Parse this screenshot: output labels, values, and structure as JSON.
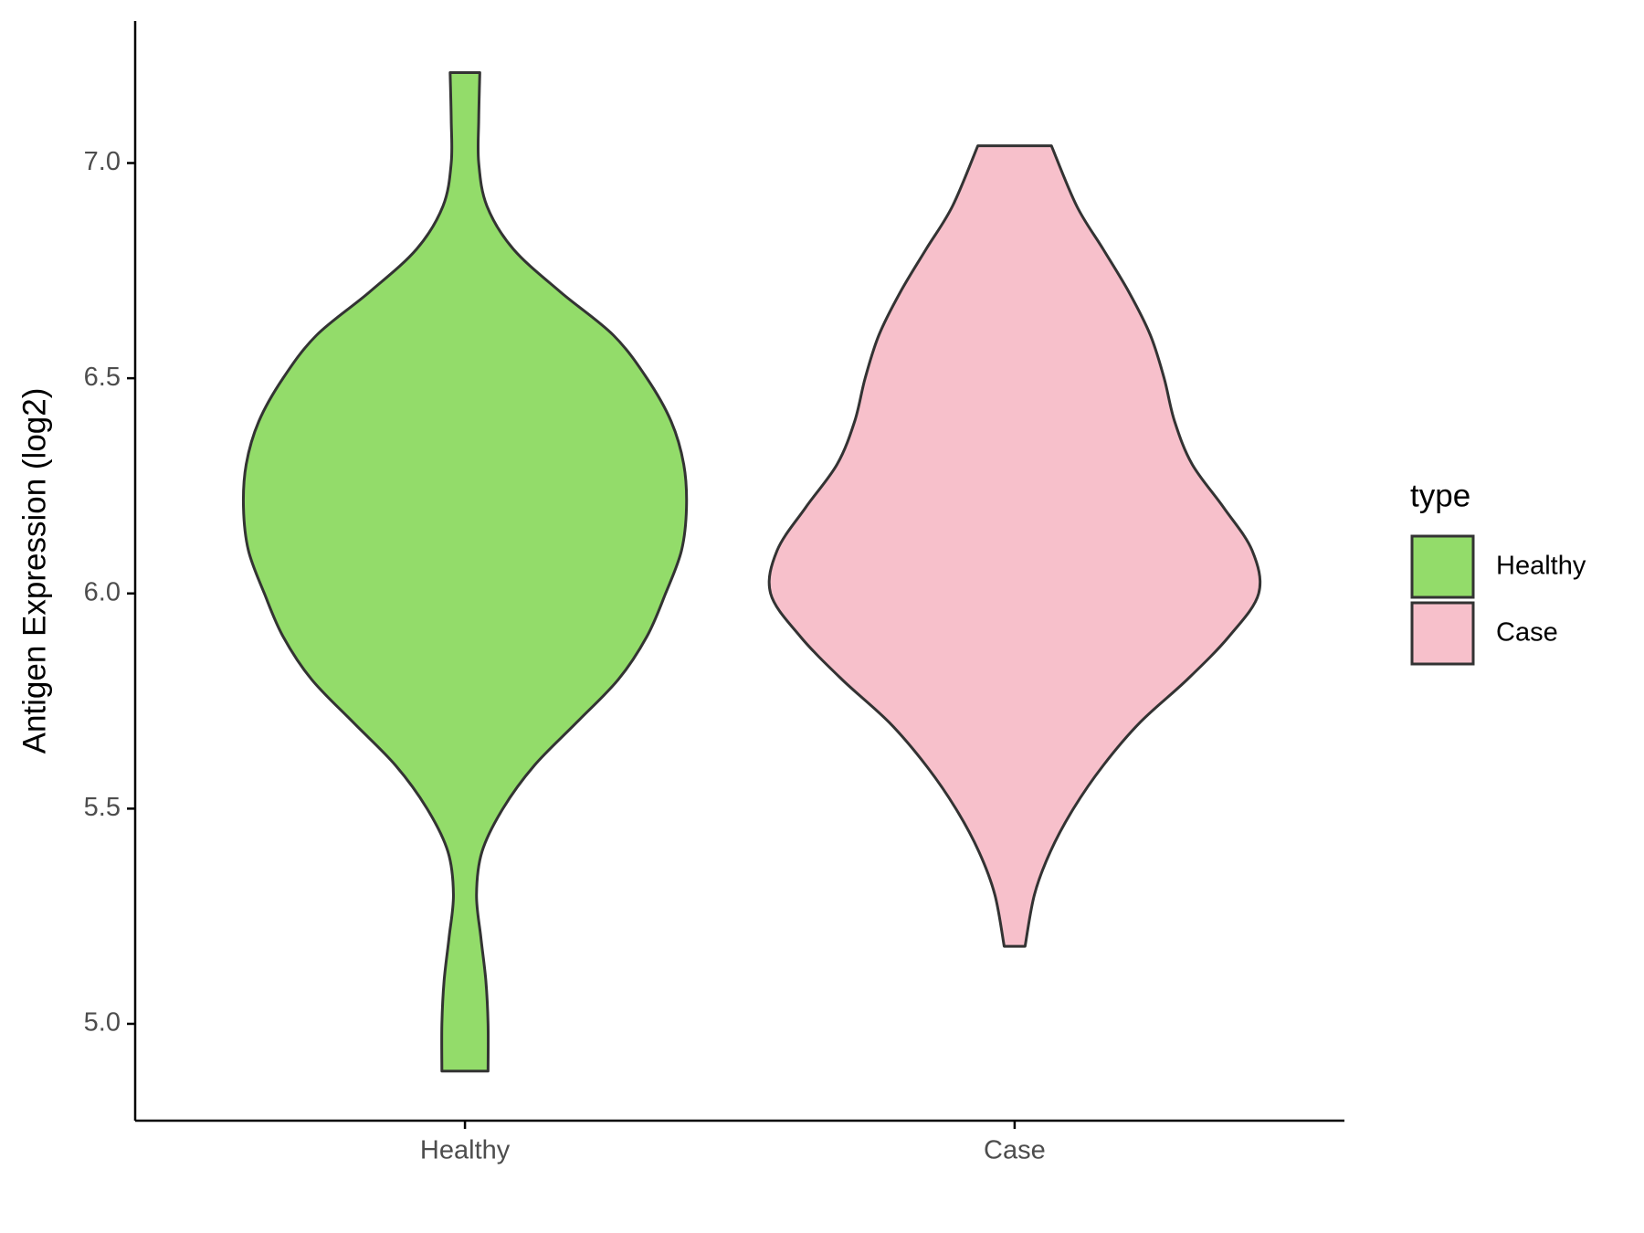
{
  "chart_data": {
    "type": "violin",
    "y_label": "Antigen Expression (log2)",
    "categories": [
      "Healthy",
      "Case"
    ],
    "legend_title": "type",
    "legend": "right",
    "ylim": [
      4.775,
      7.33
    ],
    "yticks": [
      {
        "value": 5,
        "label": "5.0"
      },
      {
        "value": 5.5,
        "label": "5.5"
      },
      {
        "value": 6,
        "label": "6.0"
      },
      {
        "value": 6.5,
        "label": "6.5"
      },
      {
        "value": 7,
        "label": "7.0"
      }
    ],
    "series": [
      {
        "name": "Healthy",
        "color": "#93dc6a",
        "y": [
          7.21,
          7.1,
          7.0,
          6.9,
          6.8,
          6.7,
          6.6,
          6.5,
          6.4,
          6.3,
          6.2,
          6.1,
          6.0,
          5.9,
          5.8,
          5.7,
          5.6,
          5.5,
          5.4,
          5.3,
          5.2,
          5.1,
          5.0,
          4.89
        ],
        "half_width": [
          0.027,
          0.025,
          0.025,
          0.04,
          0.088,
          0.174,
          0.27,
          0.331,
          0.375,
          0.398,
          0.403,
          0.394,
          0.365,
          0.331,
          0.279,
          0.203,
          0.126,
          0.069,
          0.031,
          0.021,
          0.029,
          0.038,
          0.042,
          0.042
        ]
      },
      {
        "name": "Case",
        "color": "#f7c0cb",
        "y": [
          7.04,
          6.9,
          6.8,
          6.7,
          6.6,
          6.5,
          6.4,
          6.3,
          6.2,
          6.1,
          6.0,
          5.9,
          5.8,
          5.7,
          5.6,
          5.5,
          5.4,
          5.3,
          5.18
        ],
        "half_width": [
          0.067,
          0.113,
          0.161,
          0.208,
          0.247,
          0.272,
          0.291,
          0.323,
          0.38,
          0.432,
          0.444,
          0.39,
          0.314,
          0.228,
          0.161,
          0.107,
          0.065,
          0.036,
          0.019
        ]
      }
    ]
  }
}
